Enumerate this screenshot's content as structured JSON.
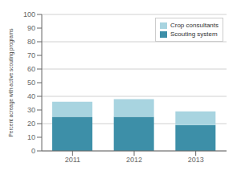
{
  "chart_data": {
    "type": "bar",
    "stacked": true,
    "categories": [
      "2011",
      "2012",
      "2013"
    ],
    "series": [
      {
        "name": "Scouting system",
        "color": "#3d8fa8",
        "values": [
          25,
          25,
          19
        ]
      },
      {
        "name": "Crop consultants",
        "color": "#a8d4e0",
        "values": [
          11,
          13,
          10
        ]
      }
    ],
    "ylabel": "Percent acreage with active scouting programs",
    "ylim": [
      0,
      100
    ],
    "yticks": [
      0,
      10,
      20,
      30,
      40,
      50,
      60,
      70,
      80,
      90,
      100
    ],
    "grid": true,
    "legend": "upper right"
  }
}
